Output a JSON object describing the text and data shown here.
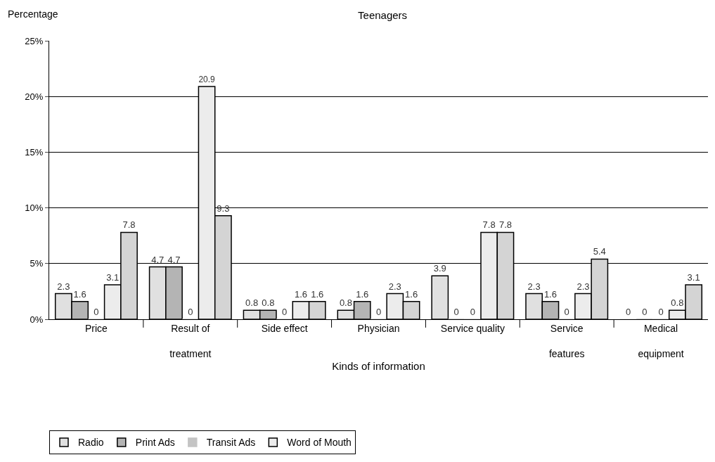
{
  "chart_data": {
    "type": "bar",
    "title": "Teenagers",
    "xlabel": "Kinds of information",
    "ylabel": "Percentage",
    "categories": [
      "Price",
      "Result of\ntreatment",
      "Side effect",
      "Physician",
      "Service quality",
      "Service\nfeatures",
      "Medical\nequipment"
    ],
    "series": [
      {
        "name": "Radio",
        "color": "#e0e0e0",
        "values": [
          2.3,
          4.7,
          0.8,
          0.8,
          3.9,
          2.3,
          0
        ]
      },
      {
        "name": "Print Ads",
        "color": "#b4b4b4",
        "values": [
          1.6,
          4.7,
          0.8,
          1.6,
          0,
          1.6,
          0
        ]
      },
      {
        "name": "Transit Ads",
        "color": "#c4c4c4",
        "values": [
          0,
          0,
          0,
          0,
          0,
          0,
          0
        ]
      },
      {
        "name": "Word of Mouth",
        "color": "#ececec",
        "values": [
          3.1,
          20.9,
          1.6,
          2.3,
          7.8,
          2.3,
          0.8
        ]
      },
      {
        "color": "#d4d4d4",
        "values": [
          7.8,
          9.3,
          1.6,
          1.6,
          7.8,
          5.4,
          3.1
        ]
      }
    ],
    "ylim": [
      0,
      25
    ],
    "yticks": [
      {
        "value": 0,
        "label": "0%"
      },
      {
        "value": 5,
        "label": "5%"
      },
      {
        "value": 10,
        "label": "10%"
      },
      {
        "value": 15,
        "label": "15%"
      },
      {
        "value": 20,
        "label": "20%"
      },
      {
        "value": 25,
        "label": "25%"
      }
    ],
    "grid": "y",
    "legend": "bottom",
    "data_labels": true
  }
}
